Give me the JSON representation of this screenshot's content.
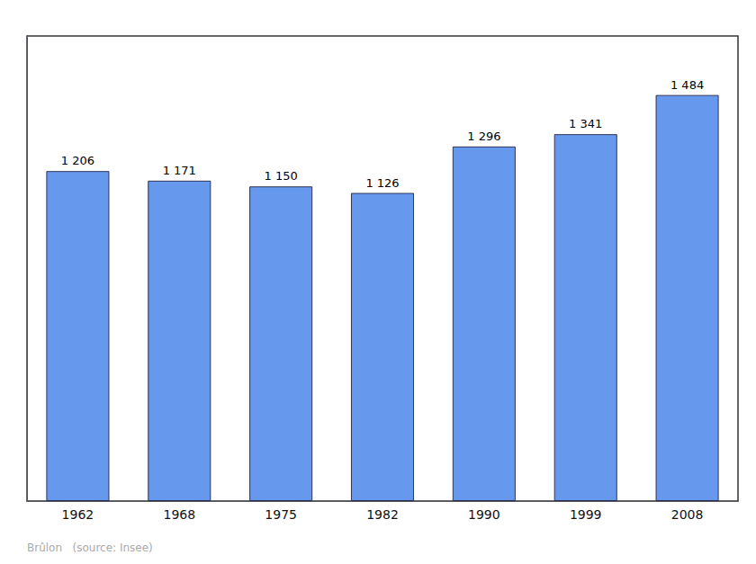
{
  "chart_data": {
    "type": "bar",
    "categories": [
      "1962",
      "1968",
      "1975",
      "1982",
      "1990",
      "1999",
      "2008"
    ],
    "values": [
      1206,
      1171,
      1150,
      1126,
      1296,
      1341,
      1484
    ],
    "value_labels": [
      "1 206",
      "1 171",
      "1 150",
      "1 126",
      "1 296",
      "1 341",
      "1 484"
    ],
    "color": "#6699ee",
    "ylim": [
      0,
      1700
    ],
    "tick_labels": "x",
    "data_labels": true,
    "grid": false,
    "annotations": [
      "Brûlon   (source: Insee)"
    ]
  }
}
